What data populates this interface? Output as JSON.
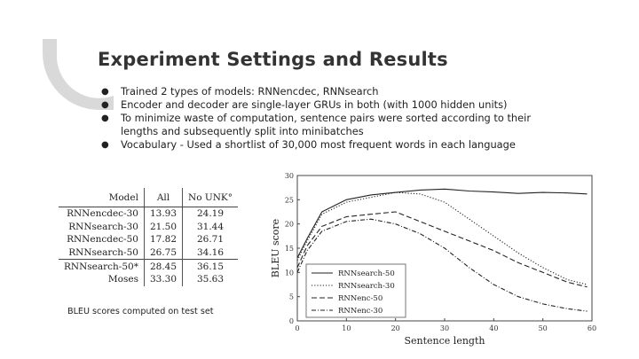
{
  "slide": {
    "title": "Experiment Settings and Results",
    "bullets": [
      "Trained 2 types of models: RNNencdec, RNNsearch",
      "Encoder and decoder are single-layer GRUs in both (with 1000 hidden units)",
      "To minimize waste of computation, sentence pairs were sorted according to their lengths and subsequently split into minibatches",
      "Vocabulary - Used a shortlist of 30,000 most frequent words in each language"
    ],
    "bullet_glyph": "●",
    "caption": "BLEU scores computed on test set",
    "accent_color": "#d9d9d9"
  },
  "table": {
    "headers": [
      "Model",
      "All",
      "No UNK°"
    ],
    "rows": [
      [
        "RNNencdec-30",
        "13.93",
        "24.19"
      ],
      [
        "RNNsearch-30",
        "21.50",
        "31.44"
      ],
      [
        "RNNencdec-50",
        "17.82",
        "26.71"
      ],
      [
        "RNNsearch-50",
        "26.75",
        "34.16"
      ],
      [
        "RNNsearch-50*",
        "28.45",
        "36.15"
      ],
      [
        "Moses",
        "33.30",
        "35.63"
      ]
    ]
  },
  "chart_data": {
    "type": "line",
    "title": "",
    "xlabel": "Sentence length",
    "ylabel": "BLEU score",
    "xlim": [
      0,
      60
    ],
    "ylim": [
      0,
      30
    ],
    "xticks": [
      "0",
      "10",
      "20",
      "30",
      "40",
      "50",
      "60"
    ],
    "yticks": [
      "0",
      "5",
      "10",
      "15",
      "20",
      "25",
      "30"
    ],
    "legend_position": "bottom-right",
    "x": [
      0,
      2,
      5,
      10,
      15,
      20,
      25,
      30,
      35,
      40,
      45,
      50,
      55,
      59
    ],
    "series": [
      {
        "name": "RNNsearch-50",
        "style": "solid",
        "values": [
          13,
          17,
          22.5,
          25,
          26,
          26.5,
          27,
          27.2,
          26.8,
          26.6,
          26.3,
          26.5,
          26.4,
          26.2
        ]
      },
      {
        "name": "RNNsearch-30",
        "style": "dotted",
        "values": [
          12.5,
          16.5,
          22,
          24.5,
          25.5,
          26.5,
          26.2,
          24.5,
          21,
          17.5,
          14,
          11,
          8.5,
          7.5
        ]
      },
      {
        "name": "RNNenc-50",
        "style": "dashed",
        "values": [
          11,
          15.5,
          19.5,
          21.5,
          22,
          22.5,
          20.5,
          18.5,
          16.5,
          14.5,
          12,
          10,
          8,
          7
        ]
      },
      {
        "name": "RNNenc-30",
        "style": "dashdot",
        "values": [
          10,
          14.5,
          18.5,
          20.5,
          21,
          20,
          18,
          15,
          11,
          7.5,
          5,
          3.5,
          2.5,
          2
        ]
      }
    ]
  }
}
